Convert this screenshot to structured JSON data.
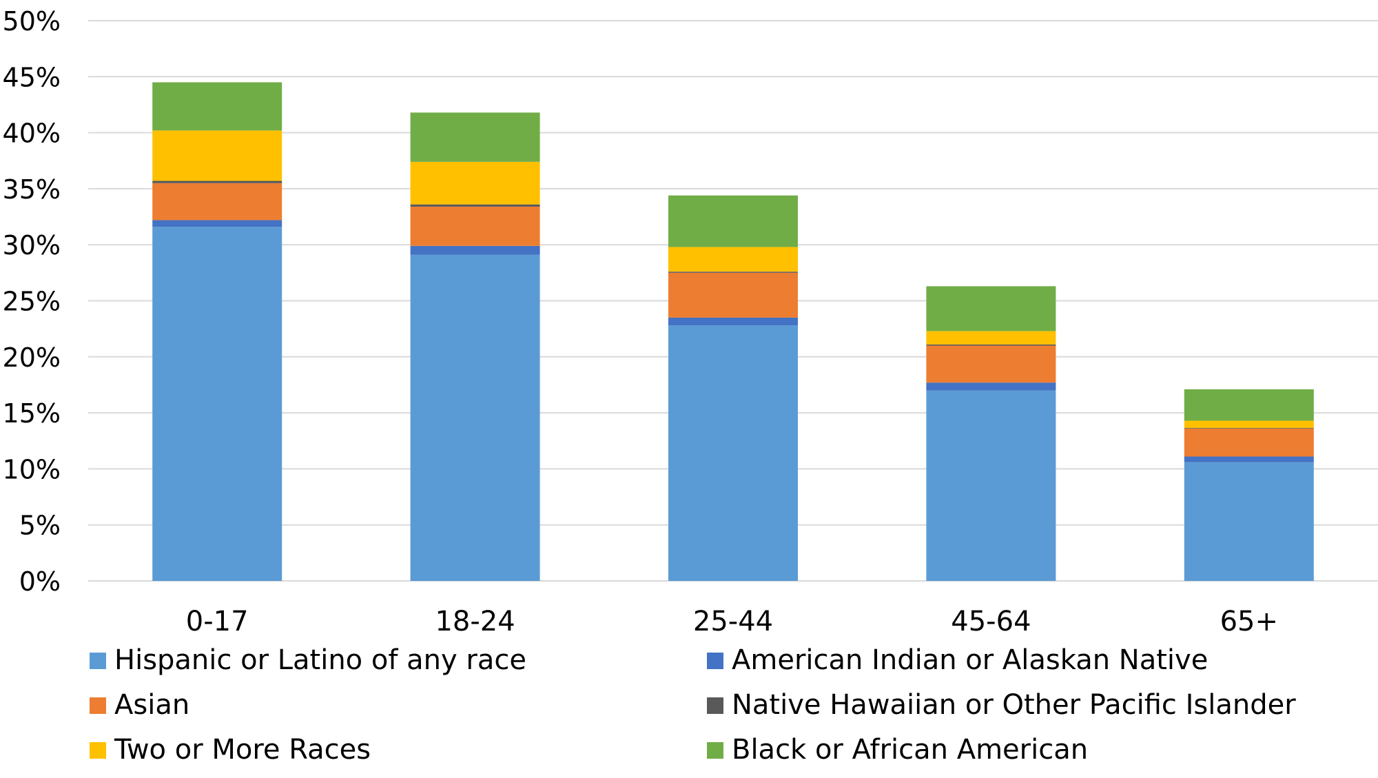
{
  "chart_data": {
    "type": "bar",
    "stacked": true,
    "title": "",
    "xlabel": "",
    "ylabel": "",
    "ylim": [
      0,
      50
    ],
    "y_ticks": [
      0,
      5,
      10,
      15,
      20,
      25,
      30,
      35,
      40,
      45,
      50
    ],
    "y_tick_labels": [
      "0%",
      "5%",
      "10%",
      "15%",
      "20%",
      "25%",
      "30%",
      "35%",
      "40%",
      "45%",
      "50%"
    ],
    "grid": true,
    "legend_position": "bottom",
    "categories": [
      "0-17",
      "18-24",
      "25-44",
      "45-64",
      "65+"
    ],
    "series": [
      {
        "name": "Hispanic or Latino of any race",
        "color": "#5B9BD5",
        "values": [
          31.6,
          29.1,
          22.8,
          17.0,
          10.6
        ]
      },
      {
        "name": "American Indian or Alaskan Native",
        "color": "#4472C4",
        "values": [
          0.6,
          0.8,
          0.7,
          0.7,
          0.5
        ]
      },
      {
        "name": "Asian",
        "color": "#ED7D31",
        "values": [
          3.3,
          3.5,
          4.0,
          3.3,
          2.5
        ]
      },
      {
        "name": "Native Hawaiian or Other Pacific Islander",
        "color": "#595959",
        "values": [
          0.2,
          0.2,
          0.1,
          0.1,
          0.05
        ]
      },
      {
        "name": "Two or More Races",
        "color": "#FFC000",
        "values": [
          4.5,
          3.8,
          2.2,
          1.2,
          0.65
        ]
      },
      {
        "name": "Black or African American",
        "color": "#70AD47",
        "values": [
          4.3,
          4.4,
          4.6,
          4.0,
          2.8
        ]
      }
    ]
  }
}
